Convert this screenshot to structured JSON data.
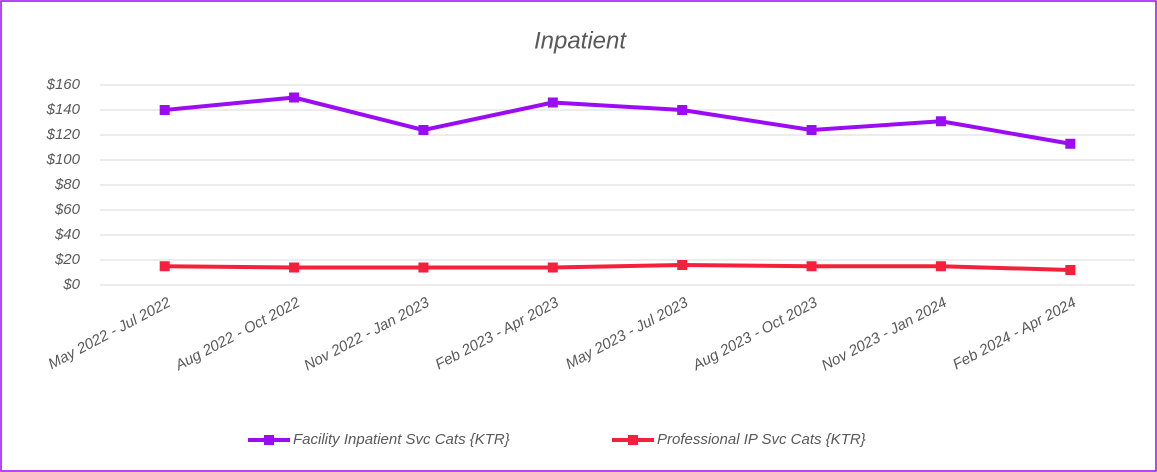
{
  "chart_data": {
    "type": "line",
    "title": "Inpatient",
    "categories": [
      "May 2022 - Jul 2022",
      "Aug 2022 - Oct 2022",
      "Nov 2022 - Jan 2023",
      "Feb 2023 - Apr 2023",
      "May 2023 - Jul 2023",
      "Aug 2023 - Oct 2023",
      "Nov 2023 - Jan 2024",
      "Feb 2024 - Apr 2024"
    ],
    "series": [
      {
        "name": "Facility Inpatient Svc Cats {KTR}",
        "color": "#9b0cf5",
        "values": [
          140,
          150,
          124,
          146,
          140,
          124,
          131,
          113
        ]
      },
      {
        "name": "Professional IP Svc Cats {KTR}",
        "color": "#f5213c",
        "values": [
          15,
          14,
          14,
          14,
          16,
          15,
          15,
          12
        ]
      }
    ],
    "ylim": [
      0,
      160
    ],
    "yticks": [
      {
        "value": 0,
        "label": "$0"
      },
      {
        "value": 20,
        "label": "$20"
      },
      {
        "value": 40,
        "label": "$40"
      },
      {
        "value": 60,
        "label": "$60"
      },
      {
        "value": 80,
        "label": "$80"
      },
      {
        "value": 100,
        "label": "$100"
      },
      {
        "value": 120,
        "label": "$120"
      },
      {
        "value": 140,
        "label": "$140"
      },
      {
        "value": 160,
        "label": "$160"
      }
    ],
    "grid": true,
    "legend": "bottom"
  }
}
